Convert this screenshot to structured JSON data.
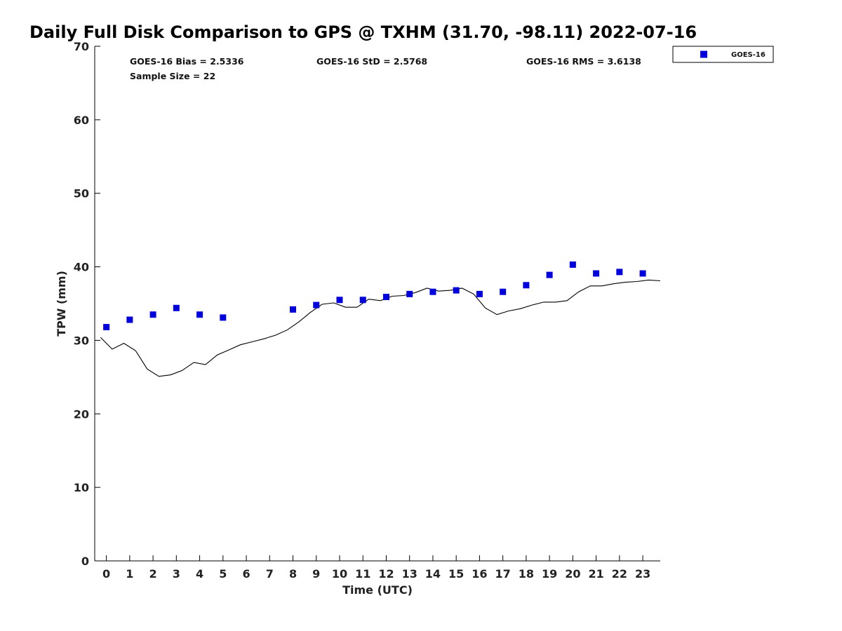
{
  "chart_data": {
    "type": "scatter",
    "title": "Daily Full Disk Comparison to GPS @ TXHM (31.70, -98.11) 2022-07-16",
    "xlabel": "Time (UTC)",
    "ylabel": "TPW (mm)",
    "xlim": [
      -0.5,
      23.75
    ],
    "ylim": [
      0,
      70
    ],
    "x_ticks": [
      "0",
      "1",
      "2",
      "3",
      "4",
      "5",
      "6",
      "7",
      "8",
      "9",
      "10",
      "11",
      "12",
      "13",
      "14",
      "15",
      "16",
      "17",
      "18",
      "19",
      "20",
      "21",
      "22",
      "23"
    ],
    "y_ticks": [
      "0",
      "10",
      "20",
      "30",
      "40",
      "50",
      "60",
      "70"
    ],
    "grid": false,
    "legend": {
      "placement": "top-right-outside",
      "entries": [
        "GOES-16"
      ]
    },
    "stats": {
      "bias": "GOES-16 Bias = 2.5336",
      "std": "GOES-16 StD = 2.5768",
      "rms": "GOES-16 RMS = 3.6138",
      "sample_size": "Sample Size = 22"
    },
    "series": [
      {
        "name": "GOES-16",
        "kind": "scatter",
        "color": "#0000dd",
        "x": [
          0,
          1,
          2,
          3,
          4,
          5,
          8,
          9,
          10,
          11,
          12,
          13,
          14,
          15,
          16,
          17,
          18,
          19,
          20,
          21,
          22,
          23
        ],
        "y": [
          31.8,
          32.8,
          33.5,
          34.4,
          33.5,
          33.1,
          34.2,
          34.8,
          35.5,
          35.5,
          35.9,
          36.3,
          36.6,
          36.8,
          36.3,
          36.6,
          37.5,
          38.9,
          40.3,
          39.1,
          39.3,
          39.1
        ]
      },
      {
        "kind": "line",
        "color": "#000000",
        "x": [
          -0.25,
          0.25,
          0.75,
          1.25,
          1.75,
          2.25,
          2.75,
          3.25,
          3.75,
          4.25,
          4.75,
          5.25,
          5.75,
          6.25,
          6.75,
          7.25,
          7.75,
          8.25,
          8.75,
          9.25,
          9.75,
          10.25,
          10.75,
          11.25,
          11.75,
          12.25,
          12.75,
          13.25,
          13.75,
          14.25,
          14.75,
          15.25,
          15.75,
          16.25,
          16.75,
          17.25,
          17.75,
          18.25,
          18.75,
          19.25,
          19.75,
          20.25,
          20.75,
          21.25,
          21.75,
          22.25,
          22.75,
          23.25,
          23.75
        ],
        "y": [
          30.4,
          28.8,
          29.6,
          28.6,
          26.1,
          25.1,
          25.3,
          25.9,
          27.0,
          26.7,
          28.0,
          28.7,
          29.4,
          29.8,
          30.2,
          30.7,
          31.4,
          32.5,
          33.8,
          34.9,
          35.1,
          34.5,
          34.5,
          35.6,
          35.4,
          36.0,
          36.1,
          36.5,
          37.1,
          36.7,
          36.8,
          37.1,
          36.3,
          34.4,
          33.5,
          34.0,
          34.3,
          34.8,
          35.2,
          35.2,
          35.4,
          36.6,
          37.4,
          37.4,
          37.7,
          37.9,
          38.0,
          38.2,
          38.1
        ]
      }
    ]
  }
}
